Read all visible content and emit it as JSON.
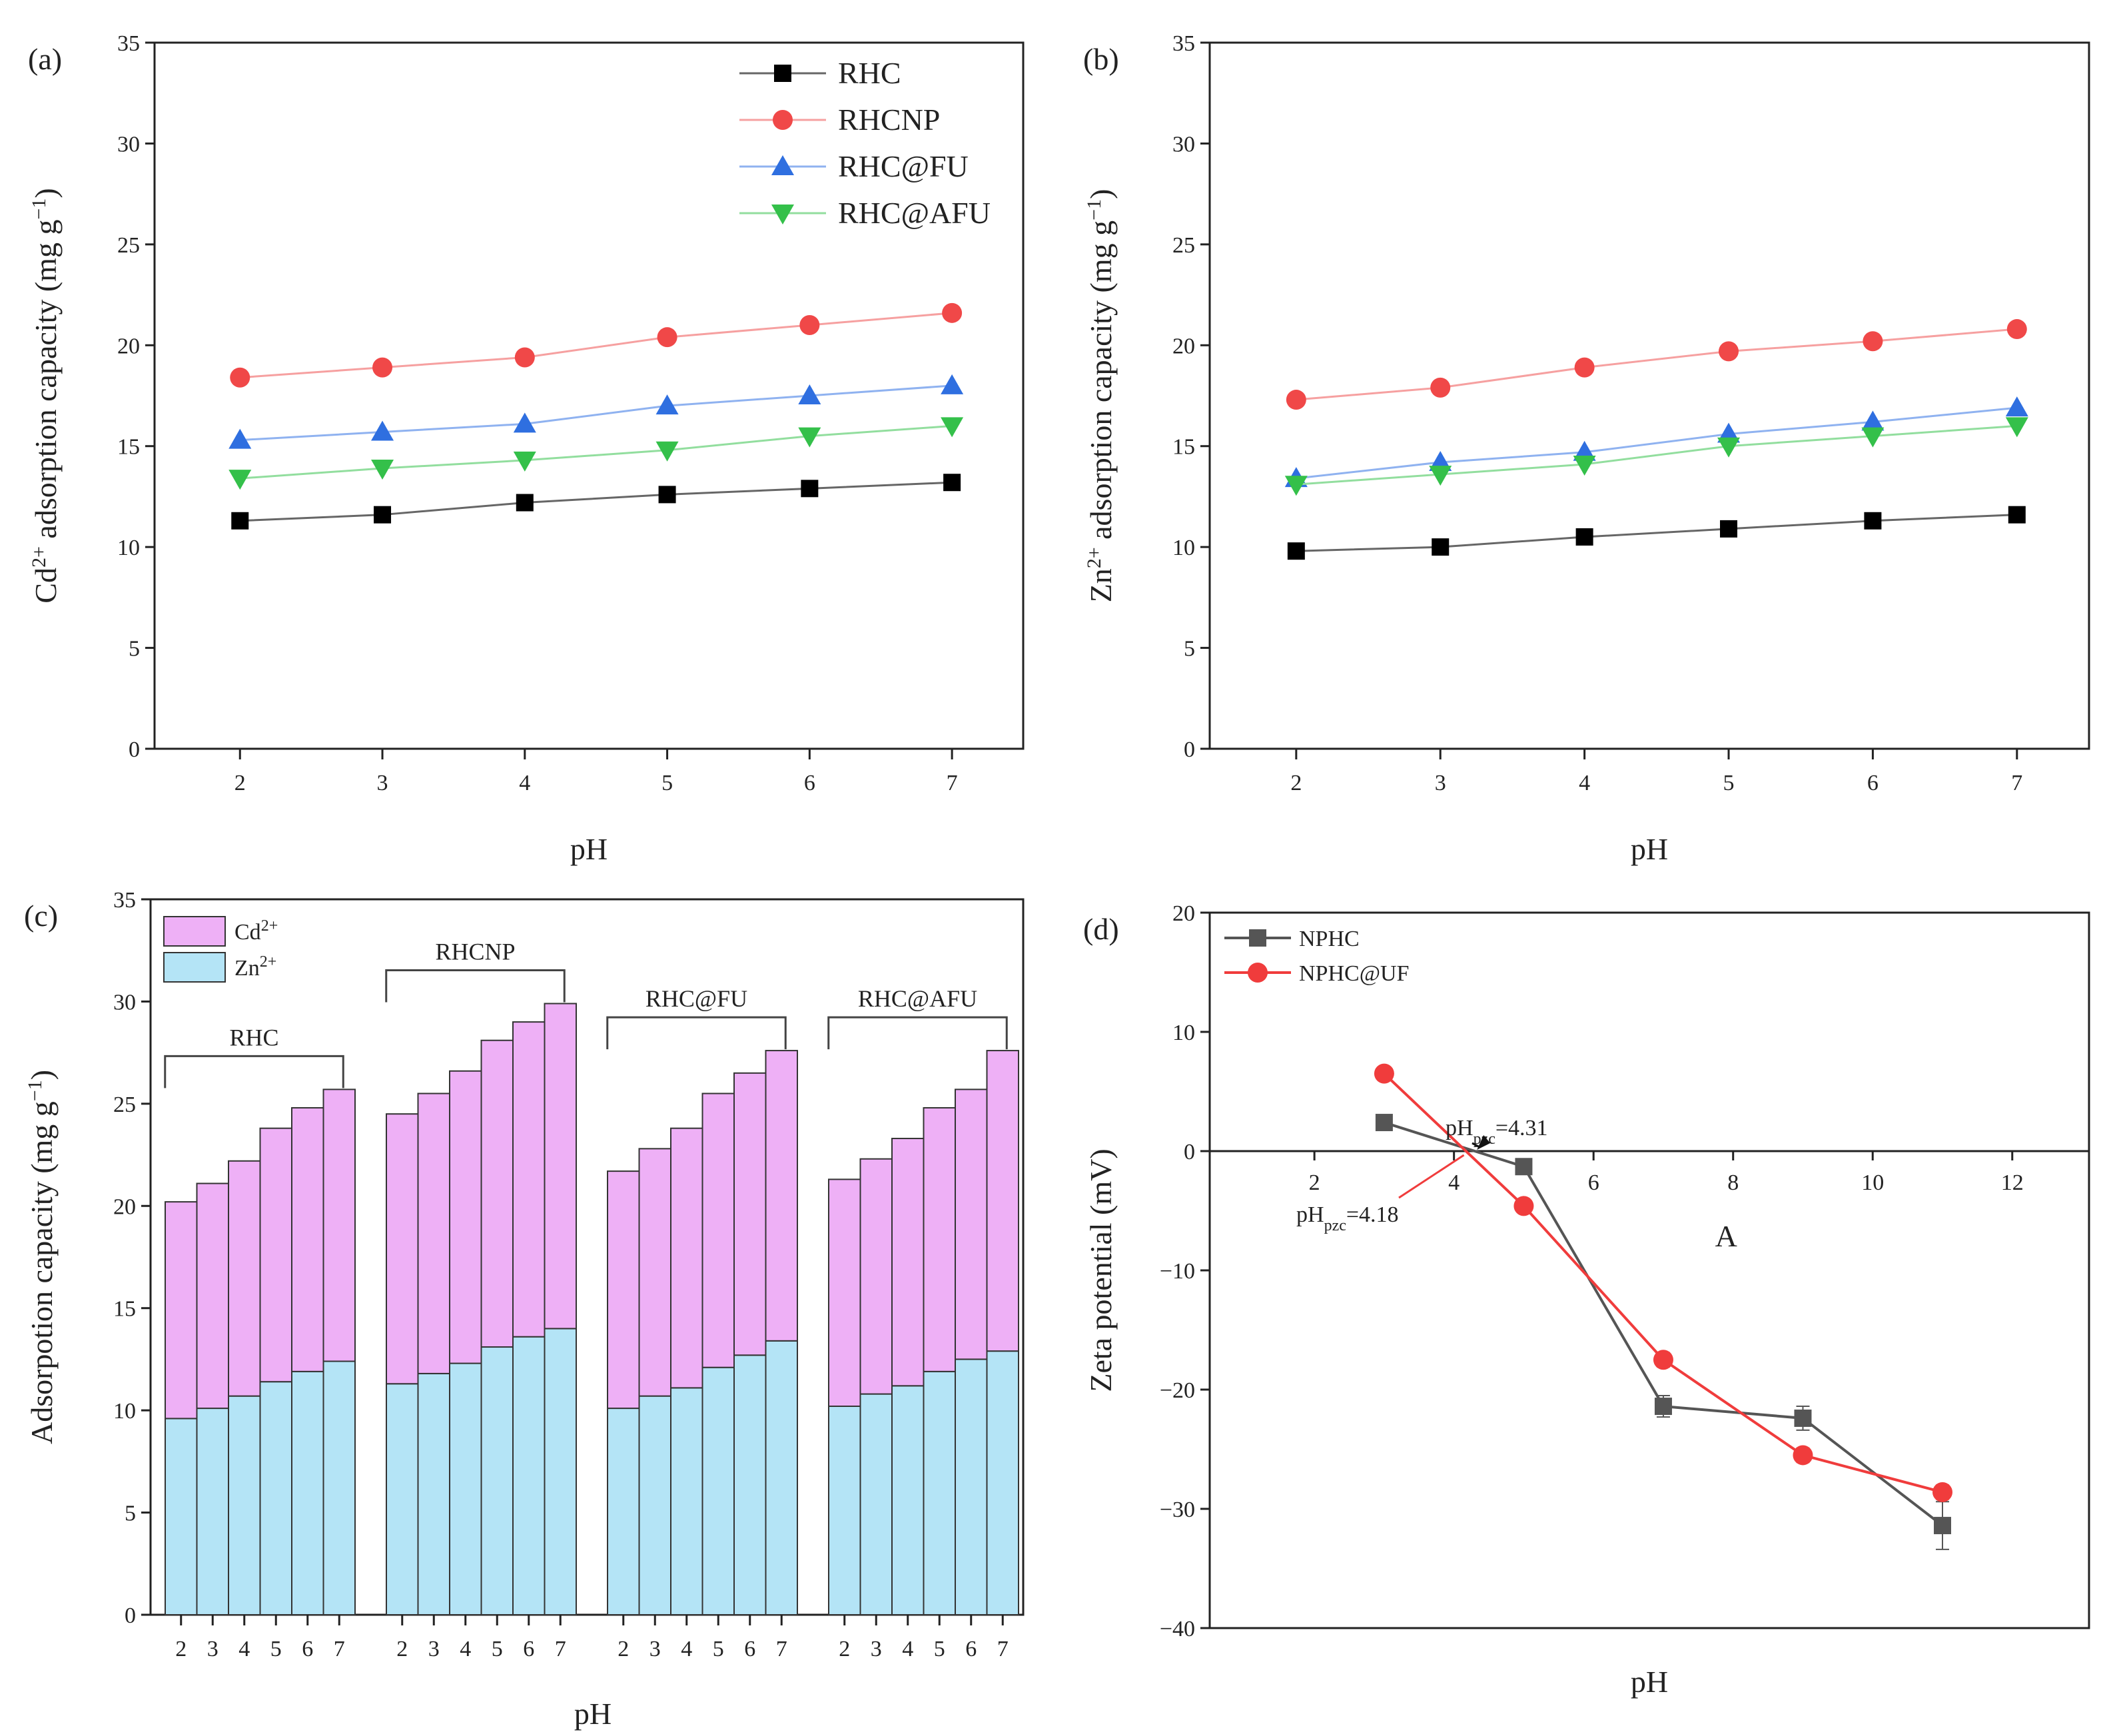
{
  "chart_data": [
    {
      "id": "a",
      "type": "line",
      "panel_label": "(a)",
      "xlabel": "pH",
      "ylabel": "Cd²⁺ adsorption capacity (mg g⁻¹)",
      "xlim": [
        1.4,
        7.5
      ],
      "ylim": [
        0,
        35
      ],
      "xticks": [
        2,
        3,
        4,
        5,
        6,
        7
      ],
      "yticks": [
        0,
        5,
        10,
        15,
        20,
        25,
        30,
        35
      ],
      "x": [
        2,
        3,
        4,
        5,
        6,
        7
      ],
      "legend_position": "top-right",
      "series": [
        {
          "name": "RHC",
          "marker": "square",
          "color": "#000000",
          "line_color": "#666666",
          "values": [
            11.3,
            11.6,
            12.2,
            12.6,
            12.9,
            13.2
          ]
        },
        {
          "name": "RHCNP",
          "marker": "circle",
          "color": "#f04848",
          "line_color": "#f6a0a0",
          "values": [
            18.4,
            18.9,
            19.4,
            20.4,
            21.0,
            21.6
          ]
        },
        {
          "name": "RHC@FU",
          "marker": "triangle-up",
          "color": "#2f6fe0",
          "line_color": "#8fb2f0",
          "values": [
            15.3,
            15.7,
            16.1,
            17.0,
            17.5,
            18.0
          ]
        },
        {
          "name": "RHC@AFU",
          "marker": "triangle-down",
          "color": "#34c04a",
          "line_color": "#92de9e",
          "values": [
            13.4,
            13.9,
            14.3,
            14.8,
            15.5,
            16.0
          ]
        }
      ]
    },
    {
      "id": "b",
      "type": "line",
      "panel_label": "(b)",
      "xlabel": "pH",
      "ylabel": "Zn²⁺ adsorption capacity (mg g⁻¹)",
      "xlim": [
        1.4,
        7.5
      ],
      "ylim": [
        0,
        35
      ],
      "xticks": [
        2,
        3,
        4,
        5,
        6,
        7
      ],
      "yticks": [
        0,
        5,
        10,
        15,
        20,
        25,
        30,
        35
      ],
      "x": [
        2,
        3,
        4,
        5,
        6,
        7
      ],
      "series": [
        {
          "name": "RHC",
          "marker": "square",
          "color": "#000000",
          "line_color": "#666666",
          "values": [
            9.8,
            10.0,
            10.5,
            10.9,
            11.3,
            11.6
          ]
        },
        {
          "name": "RHCNP",
          "marker": "circle",
          "color": "#f04848",
          "line_color": "#f6a0a0",
          "values": [
            17.3,
            17.9,
            18.9,
            19.7,
            20.2,
            20.8
          ]
        },
        {
          "name": "RHC@FU",
          "marker": "triangle-up",
          "color": "#2f6fe0",
          "line_color": "#8fb2f0",
          "values": [
            13.4,
            14.2,
            14.7,
            15.6,
            16.2,
            16.9
          ]
        },
        {
          "name": "RHC@AFU",
          "marker": "triangle-down",
          "color": "#34c04a",
          "line_color": "#92de9e",
          "values": [
            13.1,
            13.6,
            14.1,
            15.0,
            15.5,
            16.0
          ]
        }
      ]
    },
    {
      "id": "c",
      "type": "bar",
      "stacked": true,
      "panel_label": "(c)",
      "xlabel": "pH",
      "ylabel": "Adsorpotion capacity (mg g⁻¹)",
      "ylim": [
        0,
        35
      ],
      "yticks": [
        0,
        5,
        10,
        15,
        20,
        25,
        30,
        35
      ],
      "categories": [
        "2",
        "3",
        "4",
        "5",
        "6",
        "7"
      ],
      "legend_position": "top-left",
      "stack_series": [
        {
          "name": "Zn²⁺",
          "color": "#b4e4f6"
        },
        {
          "name": "Cd²⁺",
          "color": "#eeb0f6"
        }
      ],
      "groups": [
        {
          "name": "RHC",
          "zn": [
            9.6,
            10.1,
            10.7,
            11.4,
            11.9,
            12.4
          ],
          "cd": [
            10.6,
            11.0,
            11.5,
            12.4,
            12.9,
            13.3
          ]
        },
        {
          "name": "RHCNP",
          "zn": [
            11.3,
            11.8,
            12.3,
            13.1,
            13.6,
            14.0
          ],
          "cd": [
            13.2,
            13.7,
            14.3,
            15.0,
            15.4,
            15.9
          ]
        },
        {
          "name": "RHC@FU",
          "zn": [
            10.1,
            10.7,
            11.1,
            12.1,
            12.7,
            13.4
          ],
          "cd": [
            11.6,
            12.1,
            12.7,
            13.4,
            13.8,
            14.2
          ]
        },
        {
          "name": "RHC@AFU",
          "zn": [
            10.2,
            10.8,
            11.2,
            11.9,
            12.5,
            12.9
          ],
          "cd": [
            11.1,
            11.5,
            12.1,
            12.9,
            13.2,
            14.7
          ]
        }
      ]
    },
    {
      "id": "d",
      "type": "line",
      "panel_label": "(d)",
      "xlabel": "pH",
      "ylabel": "Zeta potential (mV)",
      "xlim": [
        0.5,
        13.1
      ],
      "ylim": [
        -40,
        20
      ],
      "xticks": [
        2,
        4,
        6,
        8,
        10,
        12
      ],
      "yticks": [
        -40,
        -30,
        -20,
        -10,
        0,
        10,
        20
      ],
      "x": [
        3,
        5,
        7,
        9,
        11
      ],
      "legend_position": "top-left",
      "series": [
        {
          "name": "NPHC",
          "marker": "square",
          "color": "#555555",
          "line_color": "#555555",
          "values": [
            2.4,
            -1.3,
            -21.4,
            -22.4,
            -31.4
          ],
          "errors": [
            0.3,
            0.4,
            0.9,
            1.0,
            2.0
          ]
        },
        {
          "name": "NPHC@UF",
          "marker": "circle",
          "color": "#f03c3c",
          "line_color": "#f03c3c",
          "values": [
            6.5,
            -4.6,
            -17.5,
            -25.5,
            -28.6
          ],
          "errors": [
            0.3,
            0.4,
            0.6,
            0.6,
            0.6
          ]
        }
      ],
      "annotations": [
        {
          "id": "pzc1",
          "text": "pHpzc=4.31",
          "base": "pH",
          "sub": "pzc",
          "rest": "=4.31",
          "x": 4.31,
          "y": 0
        },
        {
          "id": "pzc2",
          "text": "pHpzc=4.18",
          "base": "pH",
          "sub": "pzc",
          "rest": "=4.18",
          "x": 4.18,
          "y": 0
        },
        {
          "id": "A",
          "text": "A",
          "x": 7.9,
          "y": -8
        }
      ]
    }
  ]
}
